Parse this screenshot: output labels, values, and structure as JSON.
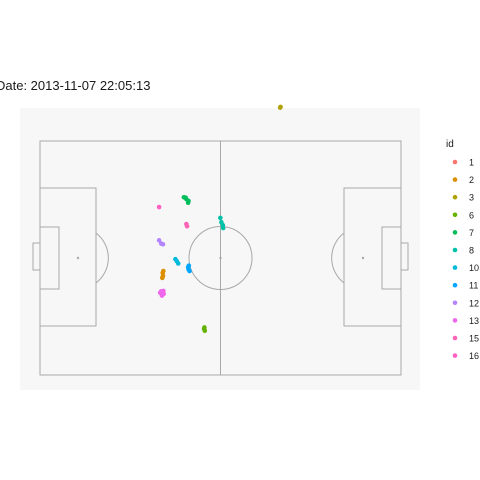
{
  "chart_data": {
    "type": "scatter",
    "title": "Date: 2013-11-07 22:05:13",
    "xlabel": "",
    "ylabel": "",
    "xlim": [
      -4,
      109
    ],
    "ylim": [
      -4,
      74
    ],
    "grid": false,
    "legend_placement": "right",
    "legend_title": "id",
    "series": [
      {
        "name": "1",
        "color": "#F8766D",
        "points": []
      },
      {
        "name": "2",
        "color": "#DB8E00",
        "points": [
          [
            36.3,
            28.4
          ],
          [
            36.4,
            27.6
          ],
          [
            36.2,
            27.0
          ],
          [
            36.5,
            28.9
          ]
        ]
      },
      {
        "name": "3",
        "color": "#AEA200",
        "points": [
          [
            69.5,
            74.1
          ],
          [
            69.6,
            74.3
          ]
        ]
      },
      {
        "name": "6",
        "color": "#64B200",
        "points": [
          [
            48.0,
            12.9
          ],
          [
            48.2,
            12.4
          ],
          [
            48.1,
            13.3
          ]
        ]
      },
      {
        "name": "7",
        "color": "#00BD5C",
        "points": [
          [
            42.3,
            49.3
          ],
          [
            43.0,
            48.8
          ],
          [
            43.6,
            48.3
          ],
          [
            43.5,
            47.8
          ],
          [
            42.8,
            49.2
          ]
        ]
      },
      {
        "name": "8",
        "color": "#00C1A7",
        "points": [
          [
            52.6,
            43.6
          ],
          [
            52.9,
            42.4
          ],
          [
            53.3,
            41.6
          ],
          [
            53.4,
            40.8
          ]
        ]
      },
      {
        "name": "10",
        "color": "#00BADE",
        "points": [
          [
            39.9,
            32.2
          ],
          [
            40.3,
            31.6
          ],
          [
            40.7,
            31.0
          ]
        ]
      },
      {
        "name": "11",
        "color": "#00A6FF",
        "points": [
          [
            43.7,
            30.4
          ],
          [
            43.6,
            29.4
          ],
          [
            43.9,
            28.9
          ],
          [
            43.5,
            30.0
          ]
        ]
      },
      {
        "name": "12",
        "color": "#B385FF",
        "points": [
          [
            35.3,
            37.4
          ],
          [
            35.9,
            36.5
          ],
          [
            36.4,
            36.3
          ]
        ]
      },
      {
        "name": "13",
        "color": "#EF67EB",
        "points": [
          [
            35.6,
            22.9
          ],
          [
            36.1,
            22.1
          ],
          [
            36.6,
            22.6
          ],
          [
            36.5,
            23.4
          ],
          [
            35.9,
            23.3
          ]
        ]
      },
      {
        "name": "15",
        "color": "#FF63B6",
        "points": [
          [
            43.0,
            41.9
          ],
          [
            43.2,
            41.3
          ]
        ]
      },
      {
        "name": "16",
        "color": "#FF61C3",
        "points": [
          [
            35.3,
            46.6
          ]
        ]
      }
    ]
  }
}
